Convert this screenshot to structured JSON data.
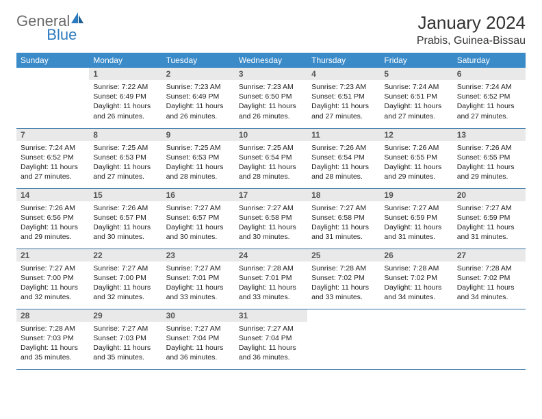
{
  "logo": {
    "textGeneral": "General",
    "textBlue": "Blue"
  },
  "title": "January 2024",
  "location": "Prabis, Guinea-Bissau",
  "colors": {
    "header_bg": "#3b8bc9",
    "header_text": "#ffffff",
    "daynum_bg": "#e9e9e9",
    "cell_border": "#2d6fa3",
    "logo_blue": "#2d7bbf",
    "logo_gray": "#6a6a6a"
  },
  "weekdays": [
    "Sunday",
    "Monday",
    "Tuesday",
    "Wednesday",
    "Thursday",
    "Friday",
    "Saturday"
  ],
  "cells": [
    {
      "day": "",
      "sunrise": "",
      "sunset": "",
      "daylight": ""
    },
    {
      "day": "1",
      "sunrise": "Sunrise: 7:22 AM",
      "sunset": "Sunset: 6:49 PM",
      "daylight": "Daylight: 11 hours and 26 minutes."
    },
    {
      "day": "2",
      "sunrise": "Sunrise: 7:23 AM",
      "sunset": "Sunset: 6:49 PM",
      "daylight": "Daylight: 11 hours and 26 minutes."
    },
    {
      "day": "3",
      "sunrise": "Sunrise: 7:23 AM",
      "sunset": "Sunset: 6:50 PM",
      "daylight": "Daylight: 11 hours and 26 minutes."
    },
    {
      "day": "4",
      "sunrise": "Sunrise: 7:23 AM",
      "sunset": "Sunset: 6:51 PM",
      "daylight": "Daylight: 11 hours and 27 minutes."
    },
    {
      "day": "5",
      "sunrise": "Sunrise: 7:24 AM",
      "sunset": "Sunset: 6:51 PM",
      "daylight": "Daylight: 11 hours and 27 minutes."
    },
    {
      "day": "6",
      "sunrise": "Sunrise: 7:24 AM",
      "sunset": "Sunset: 6:52 PM",
      "daylight": "Daylight: 11 hours and 27 minutes."
    },
    {
      "day": "7",
      "sunrise": "Sunrise: 7:24 AM",
      "sunset": "Sunset: 6:52 PM",
      "daylight": "Daylight: 11 hours and 27 minutes."
    },
    {
      "day": "8",
      "sunrise": "Sunrise: 7:25 AM",
      "sunset": "Sunset: 6:53 PM",
      "daylight": "Daylight: 11 hours and 27 minutes."
    },
    {
      "day": "9",
      "sunrise": "Sunrise: 7:25 AM",
      "sunset": "Sunset: 6:53 PM",
      "daylight": "Daylight: 11 hours and 28 minutes."
    },
    {
      "day": "10",
      "sunrise": "Sunrise: 7:25 AM",
      "sunset": "Sunset: 6:54 PM",
      "daylight": "Daylight: 11 hours and 28 minutes."
    },
    {
      "day": "11",
      "sunrise": "Sunrise: 7:26 AM",
      "sunset": "Sunset: 6:54 PM",
      "daylight": "Daylight: 11 hours and 28 minutes."
    },
    {
      "day": "12",
      "sunrise": "Sunrise: 7:26 AM",
      "sunset": "Sunset: 6:55 PM",
      "daylight": "Daylight: 11 hours and 29 minutes."
    },
    {
      "day": "13",
      "sunrise": "Sunrise: 7:26 AM",
      "sunset": "Sunset: 6:55 PM",
      "daylight": "Daylight: 11 hours and 29 minutes."
    },
    {
      "day": "14",
      "sunrise": "Sunrise: 7:26 AM",
      "sunset": "Sunset: 6:56 PM",
      "daylight": "Daylight: 11 hours and 29 minutes."
    },
    {
      "day": "15",
      "sunrise": "Sunrise: 7:26 AM",
      "sunset": "Sunset: 6:57 PM",
      "daylight": "Daylight: 11 hours and 30 minutes."
    },
    {
      "day": "16",
      "sunrise": "Sunrise: 7:27 AM",
      "sunset": "Sunset: 6:57 PM",
      "daylight": "Daylight: 11 hours and 30 minutes."
    },
    {
      "day": "17",
      "sunrise": "Sunrise: 7:27 AM",
      "sunset": "Sunset: 6:58 PM",
      "daylight": "Daylight: 11 hours and 30 minutes."
    },
    {
      "day": "18",
      "sunrise": "Sunrise: 7:27 AM",
      "sunset": "Sunset: 6:58 PM",
      "daylight": "Daylight: 11 hours and 31 minutes."
    },
    {
      "day": "19",
      "sunrise": "Sunrise: 7:27 AM",
      "sunset": "Sunset: 6:59 PM",
      "daylight": "Daylight: 11 hours and 31 minutes."
    },
    {
      "day": "20",
      "sunrise": "Sunrise: 7:27 AM",
      "sunset": "Sunset: 6:59 PM",
      "daylight": "Daylight: 11 hours and 31 minutes."
    },
    {
      "day": "21",
      "sunrise": "Sunrise: 7:27 AM",
      "sunset": "Sunset: 7:00 PM",
      "daylight": "Daylight: 11 hours and 32 minutes."
    },
    {
      "day": "22",
      "sunrise": "Sunrise: 7:27 AM",
      "sunset": "Sunset: 7:00 PM",
      "daylight": "Daylight: 11 hours and 32 minutes."
    },
    {
      "day": "23",
      "sunrise": "Sunrise: 7:27 AM",
      "sunset": "Sunset: 7:01 PM",
      "daylight": "Daylight: 11 hours and 33 minutes."
    },
    {
      "day": "24",
      "sunrise": "Sunrise: 7:28 AM",
      "sunset": "Sunset: 7:01 PM",
      "daylight": "Daylight: 11 hours and 33 minutes."
    },
    {
      "day": "25",
      "sunrise": "Sunrise: 7:28 AM",
      "sunset": "Sunset: 7:02 PM",
      "daylight": "Daylight: 11 hours and 33 minutes."
    },
    {
      "day": "26",
      "sunrise": "Sunrise: 7:28 AM",
      "sunset": "Sunset: 7:02 PM",
      "daylight": "Daylight: 11 hours and 34 minutes."
    },
    {
      "day": "27",
      "sunrise": "Sunrise: 7:28 AM",
      "sunset": "Sunset: 7:02 PM",
      "daylight": "Daylight: 11 hours and 34 minutes."
    },
    {
      "day": "28",
      "sunrise": "Sunrise: 7:28 AM",
      "sunset": "Sunset: 7:03 PM",
      "daylight": "Daylight: 11 hours and 35 minutes."
    },
    {
      "day": "29",
      "sunrise": "Sunrise: 7:27 AM",
      "sunset": "Sunset: 7:03 PM",
      "daylight": "Daylight: 11 hours and 35 minutes."
    },
    {
      "day": "30",
      "sunrise": "Sunrise: 7:27 AM",
      "sunset": "Sunset: 7:04 PM",
      "daylight": "Daylight: 11 hours and 36 minutes."
    },
    {
      "day": "31",
      "sunrise": "Sunrise: 7:27 AM",
      "sunset": "Sunset: 7:04 PM",
      "daylight": "Daylight: 11 hours and 36 minutes."
    },
    {
      "day": "",
      "sunrise": "",
      "sunset": "",
      "daylight": ""
    },
    {
      "day": "",
      "sunrise": "",
      "sunset": "",
      "daylight": ""
    },
    {
      "day": "",
      "sunrise": "",
      "sunset": "",
      "daylight": ""
    }
  ]
}
